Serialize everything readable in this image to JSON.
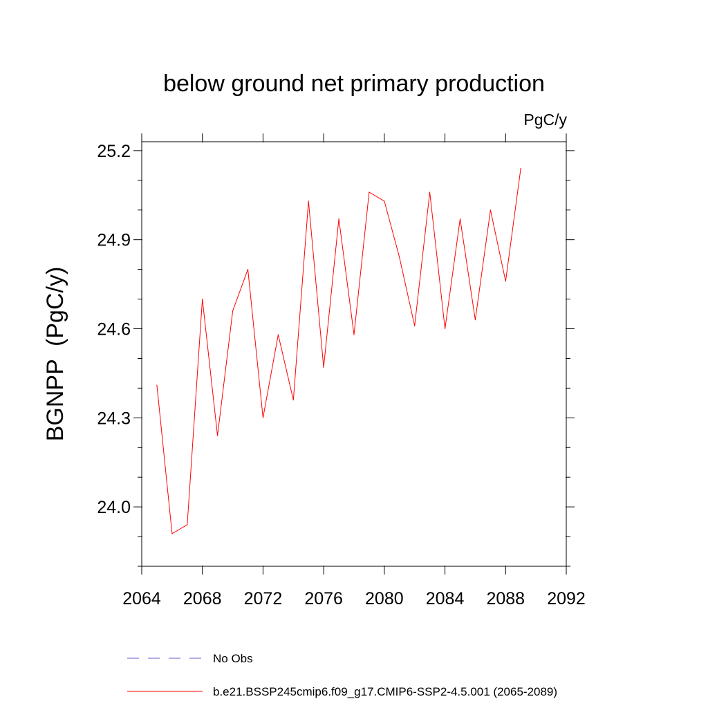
{
  "chart_data": {
    "type": "line",
    "title": "below ground net primary production",
    "units": "PgC/y",
    "ylabel": "BGNPP  (PgC/y)",
    "xlabel": "",
    "xlim": [
      2064,
      2092
    ],
    "ylim": [
      23.8,
      25.23
    ],
    "xticks": [
      2064,
      2068,
      2072,
      2076,
      2080,
      2084,
      2088,
      2092
    ],
    "xtick_labels": [
      "2064",
      "2068",
      "2072",
      "2076",
      "2080",
      "2084",
      "2088",
      "2092"
    ],
    "yticks": [
      24.0,
      24.3,
      24.6,
      24.9,
      25.2
    ],
    "ytick_labels": [
      "24.0",
      "24.3",
      "24.6",
      "24.9",
      "25.2"
    ],
    "grid": false,
    "legend_position": "bottom",
    "series": [
      {
        "name": "b.e21.BSSP245cmip6.f09_g17.CMIP6-SSP2-4.5.001 (2065-2089)",
        "color": "#ff0000",
        "style": "solid",
        "x": [
          2065,
          2066,
          2067,
          2068,
          2069,
          2070,
          2071,
          2072,
          2073,
          2074,
          2075,
          2076,
          2077,
          2078,
          2079,
          2080,
          2081,
          2082,
          2083,
          2084,
          2085,
          2086,
          2087,
          2088,
          2089
        ],
        "y": [
          24.41,
          23.91,
          23.94,
          24.7,
          24.24,
          24.66,
          24.8,
          24.3,
          24.58,
          24.36,
          25.03,
          24.47,
          24.97,
          24.58,
          25.06,
          25.03,
          24.84,
          24.61,
          25.06,
          24.6,
          24.97,
          24.63,
          25.0,
          24.76,
          25.14
        ]
      }
    ],
    "legend": [
      {
        "label": "No Obs",
        "color": "#6a5acd",
        "style": "dashed"
      },
      {
        "label": "b.e21.BSSP245cmip6.f09_g17.CMIP6-SSP2-4.5.001 (2065-2089)",
        "color": "#ff0000",
        "style": "solid"
      }
    ]
  }
}
